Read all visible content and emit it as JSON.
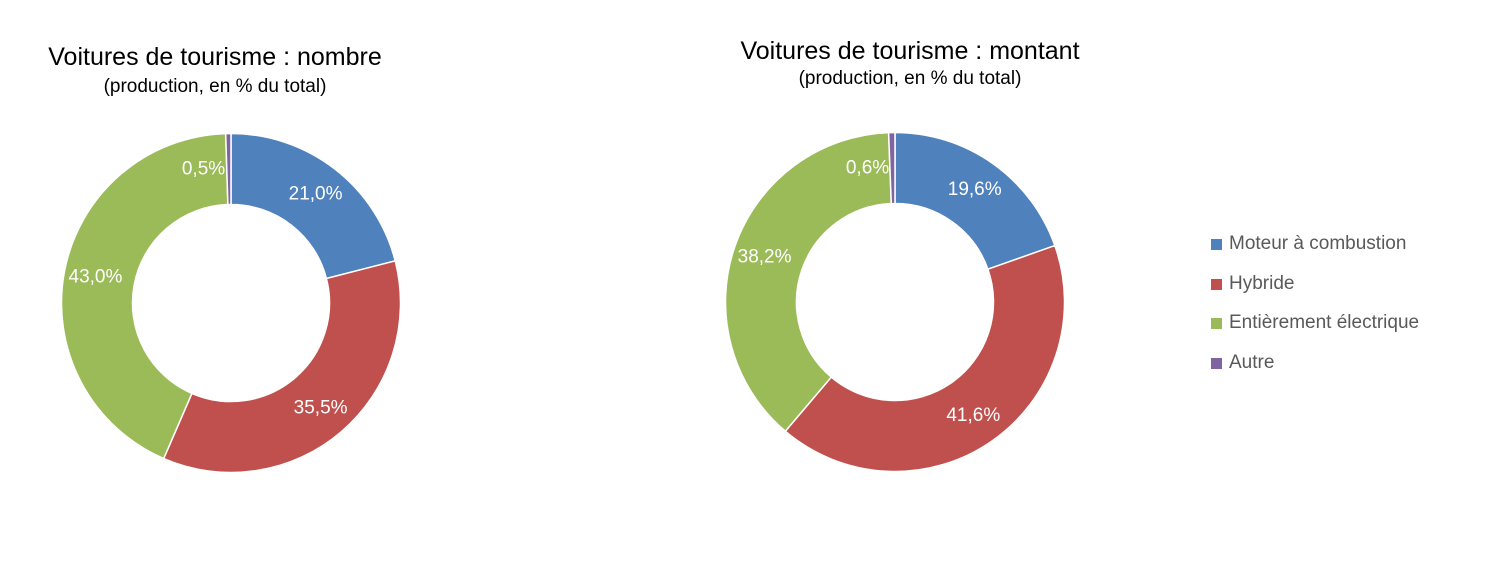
{
  "chart_data": [
    {
      "type": "pie",
      "title": "Voitures de tourisme : nombre",
      "subtitle": "(production, en % du total)",
      "categories": [
        "Moteur à combustion",
        "Hybride",
        "Entièrement électrique",
        "Autre"
      ],
      "values": [
        21.0,
        35.5,
        43.0,
        0.5
      ],
      "data_labels": [
        "21,0%",
        "35,5%",
        "43,0%",
        "0,5%"
      ],
      "colors": [
        "#4f81bd",
        "#c0504d",
        "#9bbb59",
        "#8064a2"
      ]
    },
    {
      "type": "pie",
      "title": "Voitures de tourisme : montant",
      "subtitle": "(production, en % du total)",
      "categories": [
        "Moteur à combustion",
        "Hybride",
        "Entièrement électrique",
        "Autre"
      ],
      "values": [
        19.6,
        41.6,
        38.2,
        0.6
      ],
      "data_labels": [
        "19,6%",
        "41,6%",
        "38,2%",
        "0,6%"
      ],
      "colors": [
        "#4f81bd",
        "#c0504d",
        "#9bbb59",
        "#8064a2"
      ]
    }
  ],
  "legend": {
    "placement": "right",
    "items": [
      {
        "label": "Moteur à combustion",
        "color": "#4f81bd"
      },
      {
        "label": "Hybride",
        "color": "#c0504d"
      },
      {
        "label": "Entièrement électrique",
        "color": "#9bbb59"
      },
      {
        "label": "Autre",
        "color": "#8064a2"
      }
    ]
  }
}
